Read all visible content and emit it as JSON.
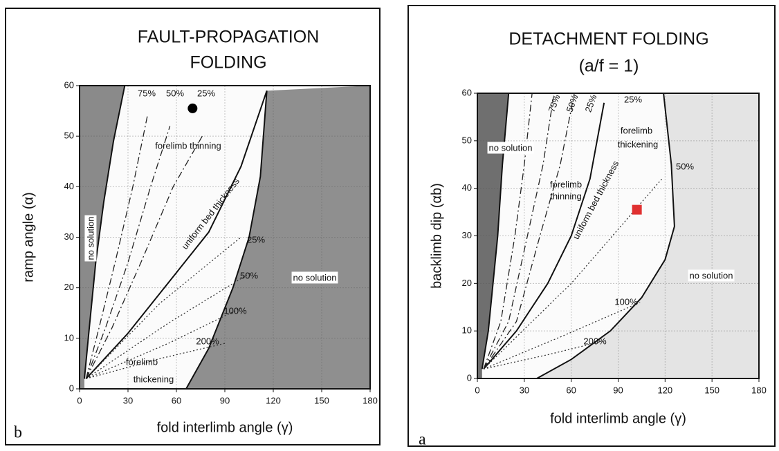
{
  "chart_data": [
    {
      "type": "line",
      "panel_label": "b",
      "title": [
        "FAULT-PROPAGATION",
        "FOLDING"
      ],
      "x_label": "fold interlimb angle (γ)",
      "y_label": "ramp angle (α)",
      "xlim": [
        0,
        180
      ],
      "ylim": [
        0,
        60
      ],
      "xticks": [
        0,
        30,
        60,
        90,
        120,
        150,
        180
      ],
      "yticks": [
        0,
        10,
        20,
        30,
        40,
        50,
        60
      ],
      "grid": true,
      "series": [
        {
          "dash": "solid",
          "color": "#111",
          "fill": "left",
          "fill_color": "#8a8a8a",
          "x": [
            3,
            6,
            10,
            15,
            21,
            28
          ],
          "y": [
            2,
            12,
            25,
            37,
            49,
            60
          ]
        },
        {
          "dash": "dash-dot",
          "color": "#222",
          "x": [
            4,
            12,
            22,
            33,
            42
          ],
          "y": [
            2,
            12,
            25,
            40,
            54
          ]
        },
        {
          "dash": "dash-dot",
          "color": "#222",
          "x": [
            4,
            16,
            30,
            44,
            56
          ],
          "y": [
            2,
            12,
            25,
            40,
            52
          ]
        },
        {
          "dash": "dash-dot",
          "color": "#222",
          "x": [
            4,
            20,
            38,
            58,
            76
          ],
          "y": [
            2,
            12,
            25,
            40,
            50
          ]
        },
        {
          "dash": "solid",
          "color": "#111",
          "x": [
            4,
            30,
            60,
            80,
            100,
            116
          ],
          "y": [
            2,
            11,
            23,
            31,
            44,
            59
          ]
        },
        {
          "dash": "solid",
          "color": "#111",
          "fill": "right",
          "fill_color": "#8f8f8f",
          "x": [
            66,
            80,
            95,
            105,
            112,
            116
          ],
          "y": [
            0,
            8,
            20,
            30,
            42,
            59
          ]
        },
        {
          "dash": "dot",
          "color": "#333",
          "x": [
            4,
            50,
            100
          ],
          "y": [
            2,
            17,
            30
          ]
        },
        {
          "dash": "dot",
          "color": "#333",
          "x": [
            4,
            55,
            106
          ],
          "y": [
            2,
            13,
            23
          ]
        },
        {
          "dash": "dot",
          "color": "#333",
          "x": [
            4,
            55,
            100
          ],
          "y": [
            2,
            9,
            16
          ]
        },
        {
          "dash": "dot",
          "color": "#333",
          "x": [
            4,
            50,
            90
          ],
          "y": [
            2,
            6,
            9
          ]
        }
      ],
      "points": [
        {
          "x": 70,
          "y": 55.5,
          "color": "#000",
          "shape": "circle"
        }
      ],
      "annotations": [
        "75%",
        "50%",
        "25%",
        "forelimb thinning",
        "uniform bed thickness",
        "no solution",
        "no solution",
        "25%",
        "50%",
        "100%",
        "200%",
        "forelimb",
        "thickening"
      ]
    },
    {
      "type": "line",
      "panel_label": "a",
      "title": [
        "DETACHMENT FOLDING",
        "(a/f  =  1)"
      ],
      "x_label": "fold interlimb angle (γ)",
      "y_label": "backlimb dip (αb)",
      "xlim": [
        0,
        180
      ],
      "ylim": [
        0,
        60
      ],
      "xticks": [
        0,
        30,
        60,
        90,
        120,
        150,
        180
      ],
      "yticks": [
        0,
        10,
        20,
        30,
        40,
        50,
        60
      ],
      "grid": true,
      "series": [
        {
          "dash": "solid",
          "color": "#111",
          "fill": "left",
          "fill_color": "#6f6f6f",
          "x": [
            3,
            7,
            10,
            13,
            16,
            20
          ],
          "y": [
            2,
            10,
            20,
            30,
            45,
            60
          ]
        },
        {
          "dash": "dash-dot",
          "color": "#222",
          "x": [
            4,
            15,
            24,
            30,
            35
          ],
          "y": [
            2,
            12,
            30,
            45,
            60
          ]
        },
        {
          "dash": "dash-dot",
          "color": "#222",
          "x": [
            4,
            20,
            32,
            42,
            49
          ],
          "y": [
            2,
            12,
            30,
            45,
            60
          ]
        },
        {
          "dash": "dash-dot",
          "color": "#222",
          "x": [
            4,
            25,
            40,
            53,
            62
          ],
          "y": [
            2,
            12,
            30,
            45,
            60
          ]
        },
        {
          "dash": "solid",
          "color": "#111",
          "x": [
            4,
            25,
            45,
            60,
            72,
            81
          ],
          "y": [
            2,
            10,
            20,
            30,
            42,
            58
          ]
        },
        {
          "dash": "solid",
          "color": "#111",
          "fill": "right",
          "fill_color": "#e4e4e4",
          "x": [
            38,
            60,
            85,
            105,
            120,
            126,
            124,
            119
          ],
          "y": [
            0,
            4,
            10,
            17,
            25,
            32,
            45,
            60
          ]
        },
        {
          "dash": "dot",
          "color": "#333",
          "x": [
            4,
            60,
            118
          ],
          "y": [
            2,
            20,
            42
          ]
        },
        {
          "dash": "dot",
          "color": "#333",
          "x": [
            4,
            55,
            104
          ],
          "y": [
            2,
            9,
            16
          ]
        },
        {
          "dash": "dot",
          "color": "#333",
          "x": [
            4,
            45,
            82
          ],
          "y": [
            2,
            5,
            8
          ]
        }
      ],
      "points": [
        {
          "x": 102,
          "y": 35.5,
          "color": "#e03030",
          "shape": "square"
        }
      ],
      "annotations": [
        "75%",
        "50%",
        "25%",
        "25%",
        "forelimb",
        "thickening",
        "no solution",
        "forelimb",
        "thinning",
        "uniform bed thickness",
        "50%",
        "no solution",
        "100%",
        "200%"
      ]
    }
  ]
}
